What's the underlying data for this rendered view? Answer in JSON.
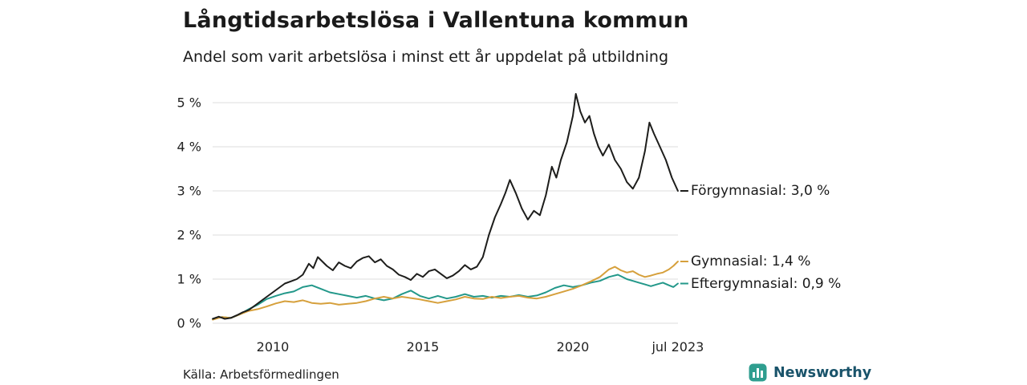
{
  "logo": {
    "text": "Newsworthy",
    "icon": "bar-chart-icon",
    "icon_color": "#2f9e8f",
    "text_color": "#19536a"
  },
  "chart_data": {
    "type": "line",
    "title": "Långtidsarbetslösa i Vallentuna kommun",
    "subtitle": "Andel som varit arbetslösa i minst ett år uppdelat på utbildning",
    "source": "Källa: Arbetsförmedlingen",
    "grid": "horizontal",
    "grid_color": "#dddddd",
    "axis_text_color": "#222222",
    "ylim": [
      0,
      5.3
    ],
    "xlim": [
      2007.9,
      2023.6
    ],
    "legend_position": "right-of-line-ends",
    "y_ticks": [
      {
        "label": "0 %",
        "value": 0
      },
      {
        "label": "1 %",
        "value": 1
      },
      {
        "label": "2 %",
        "value": 2
      },
      {
        "label": "3 %",
        "value": 3
      },
      {
        "label": "4 %",
        "value": 4
      },
      {
        "label": "5 %",
        "value": 5
      }
    ],
    "x_ticks": [
      {
        "label": "2010",
        "year": 2010
      },
      {
        "label": "2015",
        "year": 2015
      },
      {
        "label": "2020",
        "year": 2020
      },
      {
        "label": "jul 2023",
        "year": 2023.5
      }
    ],
    "series": [
      {
        "name": "Förgymnasial",
        "end_label": "Förgymnasial: 3,0 %",
        "last_value": 3.0,
        "color": "#1d1d1b",
        "points": [
          [
            2008.0,
            0.1
          ],
          [
            2008.2,
            0.15
          ],
          [
            2008.4,
            0.1
          ],
          [
            2008.6,
            0.12
          ],
          [
            2008.8,
            0.18
          ],
          [
            2009.0,
            0.25
          ],
          [
            2009.2,
            0.3
          ],
          [
            2009.4,
            0.4
          ],
          [
            2009.6,
            0.5
          ],
          [
            2009.8,
            0.6
          ],
          [
            2010.0,
            0.7
          ],
          [
            2010.2,
            0.8
          ],
          [
            2010.4,
            0.9
          ],
          [
            2010.6,
            0.95
          ],
          [
            2010.8,
            1.0
          ],
          [
            2011.0,
            1.1
          ],
          [
            2011.2,
            1.35
          ],
          [
            2011.35,
            1.25
          ],
          [
            2011.5,
            1.5
          ],
          [
            2011.65,
            1.4
          ],
          [
            2011.8,
            1.3
          ],
          [
            2012.0,
            1.2
          ],
          [
            2012.2,
            1.38
          ],
          [
            2012.4,
            1.3
          ],
          [
            2012.6,
            1.25
          ],
          [
            2012.8,
            1.4
          ],
          [
            2013.0,
            1.48
          ],
          [
            2013.2,
            1.52
          ],
          [
            2013.4,
            1.38
          ],
          [
            2013.6,
            1.45
          ],
          [
            2013.8,
            1.3
          ],
          [
            2014.0,
            1.22
          ],
          [
            2014.2,
            1.1
          ],
          [
            2014.4,
            1.05
          ],
          [
            2014.6,
            0.98
          ],
          [
            2014.8,
            1.12
          ],
          [
            2015.0,
            1.05
          ],
          [
            2015.2,
            1.18
          ],
          [
            2015.4,
            1.22
          ],
          [
            2015.6,
            1.12
          ],
          [
            2015.8,
            1.02
          ],
          [
            2016.0,
            1.08
          ],
          [
            2016.2,
            1.18
          ],
          [
            2016.4,
            1.32
          ],
          [
            2016.6,
            1.22
          ],
          [
            2016.8,
            1.28
          ],
          [
            2017.0,
            1.5
          ],
          [
            2017.2,
            2.0
          ],
          [
            2017.4,
            2.4
          ],
          [
            2017.6,
            2.7
          ],
          [
            2017.75,
            2.95
          ],
          [
            2017.9,
            3.25
          ],
          [
            2018.1,
            2.95
          ],
          [
            2018.3,
            2.6
          ],
          [
            2018.5,
            2.35
          ],
          [
            2018.7,
            2.55
          ],
          [
            2018.9,
            2.45
          ],
          [
            2019.1,
            2.9
          ],
          [
            2019.3,
            3.55
          ],
          [
            2019.45,
            3.3
          ],
          [
            2019.6,
            3.7
          ],
          [
            2019.8,
            4.1
          ],
          [
            2020.0,
            4.7
          ],
          [
            2020.1,
            5.2
          ],
          [
            2020.25,
            4.8
          ],
          [
            2020.4,
            4.55
          ],
          [
            2020.55,
            4.7
          ],
          [
            2020.7,
            4.3
          ],
          [
            2020.85,
            4.0
          ],
          [
            2021.0,
            3.8
          ],
          [
            2021.2,
            4.05
          ],
          [
            2021.4,
            3.7
          ],
          [
            2021.6,
            3.5
          ],
          [
            2021.8,
            3.2
          ],
          [
            2022.0,
            3.05
          ],
          [
            2022.2,
            3.3
          ],
          [
            2022.4,
            3.9
          ],
          [
            2022.55,
            4.55
          ],
          [
            2022.7,
            4.3
          ],
          [
            2022.9,
            4.0
          ],
          [
            2023.1,
            3.7
          ],
          [
            2023.3,
            3.3
          ],
          [
            2023.5,
            3.0
          ]
        ]
      },
      {
        "name": "Gymnasial",
        "end_label": "Gymnasial: 1,4 %",
        "last_value": 1.4,
        "color": "#d6a03c",
        "points": [
          [
            2008.0,
            0.08
          ],
          [
            2008.3,
            0.14
          ],
          [
            2008.6,
            0.12
          ],
          [
            2008.9,
            0.2
          ],
          [
            2009.2,
            0.28
          ],
          [
            2009.5,
            0.32
          ],
          [
            2009.8,
            0.38
          ],
          [
            2010.1,
            0.45
          ],
          [
            2010.4,
            0.5
          ],
          [
            2010.7,
            0.48
          ],
          [
            2011.0,
            0.52
          ],
          [
            2011.3,
            0.46
          ],
          [
            2011.6,
            0.44
          ],
          [
            2011.9,
            0.46
          ],
          [
            2012.2,
            0.42
          ],
          [
            2012.5,
            0.44
          ],
          [
            2012.8,
            0.46
          ],
          [
            2013.1,
            0.5
          ],
          [
            2013.4,
            0.56
          ],
          [
            2013.7,
            0.6
          ],
          [
            2014.0,
            0.56
          ],
          [
            2014.3,
            0.6
          ],
          [
            2014.6,
            0.57
          ],
          [
            2014.9,
            0.54
          ],
          [
            2015.2,
            0.5
          ],
          [
            2015.5,
            0.46
          ],
          [
            2015.8,
            0.5
          ],
          [
            2016.1,
            0.54
          ],
          [
            2016.4,
            0.6
          ],
          [
            2016.7,
            0.56
          ],
          [
            2017.0,
            0.55
          ],
          [
            2017.3,
            0.6
          ],
          [
            2017.6,
            0.57
          ],
          [
            2017.9,
            0.6
          ],
          [
            2018.2,
            0.62
          ],
          [
            2018.5,
            0.58
          ],
          [
            2018.8,
            0.56
          ],
          [
            2019.1,
            0.6
          ],
          [
            2019.4,
            0.66
          ],
          [
            2019.7,
            0.72
          ],
          [
            2020.0,
            0.78
          ],
          [
            2020.3,
            0.86
          ],
          [
            2020.6,
            0.95
          ],
          [
            2020.9,
            1.05
          ],
          [
            2021.2,
            1.22
          ],
          [
            2021.4,
            1.28
          ],
          [
            2021.6,
            1.2
          ],
          [
            2021.8,
            1.15
          ],
          [
            2022.0,
            1.18
          ],
          [
            2022.2,
            1.1
          ],
          [
            2022.4,
            1.05
          ],
          [
            2022.6,
            1.08
          ],
          [
            2022.8,
            1.12
          ],
          [
            2023.0,
            1.15
          ],
          [
            2023.2,
            1.22
          ],
          [
            2023.35,
            1.3
          ],
          [
            2023.5,
            1.4
          ]
        ]
      },
      {
        "name": "Eftergymnasial",
        "end_label": "Eftergymnasial: 0,9 %",
        "last_value": 0.9,
        "color": "#23988a",
        "points": [
          [
            2008.0,
            0.1
          ],
          [
            2008.3,
            0.14
          ],
          [
            2008.6,
            0.12
          ],
          [
            2008.9,
            0.2
          ],
          [
            2009.2,
            0.32
          ],
          [
            2009.5,
            0.42
          ],
          [
            2009.8,
            0.55
          ],
          [
            2010.1,
            0.62
          ],
          [
            2010.4,
            0.68
          ],
          [
            2010.7,
            0.72
          ],
          [
            2011.0,
            0.82
          ],
          [
            2011.3,
            0.86
          ],
          [
            2011.6,
            0.78
          ],
          [
            2011.9,
            0.7
          ],
          [
            2012.2,
            0.66
          ],
          [
            2012.5,
            0.62
          ],
          [
            2012.8,
            0.58
          ],
          [
            2013.1,
            0.62
          ],
          [
            2013.4,
            0.56
          ],
          [
            2013.7,
            0.52
          ],
          [
            2014.0,
            0.56
          ],
          [
            2014.3,
            0.66
          ],
          [
            2014.6,
            0.74
          ],
          [
            2014.9,
            0.62
          ],
          [
            2015.2,
            0.56
          ],
          [
            2015.5,
            0.62
          ],
          [
            2015.8,
            0.56
          ],
          [
            2016.1,
            0.6
          ],
          [
            2016.4,
            0.66
          ],
          [
            2016.7,
            0.6
          ],
          [
            2017.0,
            0.62
          ],
          [
            2017.3,
            0.58
          ],
          [
            2017.6,
            0.62
          ],
          [
            2017.9,
            0.6
          ],
          [
            2018.2,
            0.64
          ],
          [
            2018.5,
            0.6
          ],
          [
            2018.8,
            0.63
          ],
          [
            2019.1,
            0.7
          ],
          [
            2019.4,
            0.8
          ],
          [
            2019.7,
            0.86
          ],
          [
            2020.0,
            0.82
          ],
          [
            2020.3,
            0.86
          ],
          [
            2020.6,
            0.92
          ],
          [
            2020.9,
            0.96
          ],
          [
            2021.2,
            1.05
          ],
          [
            2021.5,
            1.1
          ],
          [
            2021.8,
            1.0
          ],
          [
            2022.0,
            0.96
          ],
          [
            2022.2,
            0.92
          ],
          [
            2022.4,
            0.88
          ],
          [
            2022.6,
            0.84
          ],
          [
            2022.8,
            0.88
          ],
          [
            2023.0,
            0.92
          ],
          [
            2023.2,
            0.86
          ],
          [
            2023.35,
            0.82
          ],
          [
            2023.5,
            0.9
          ]
        ]
      }
    ]
  }
}
